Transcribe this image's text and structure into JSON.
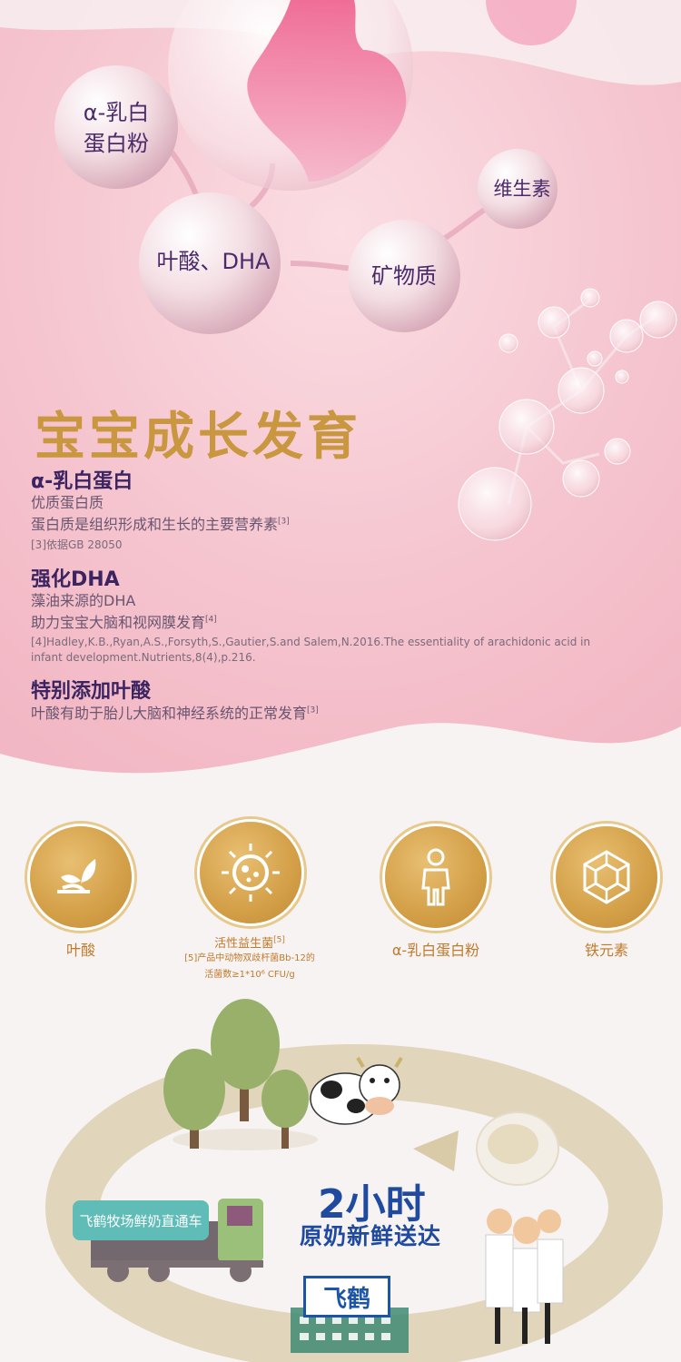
{
  "bubbles": {
    "alpha_protein": "α-乳白\n蛋白粉",
    "folic_dha": "叶酸、DHA",
    "minerals": "矿物质",
    "vitamins": "维生素"
  },
  "growth": {
    "title": "宝宝成长发育",
    "items": [
      {
        "heading": "α-乳白蛋白",
        "lines": [
          "优质蛋白质",
          "蛋白质是组织形成和生长的主要营养素"
        ],
        "line_sup": "[3]",
        "ref": "[3]依据GB 28050"
      },
      {
        "heading": "强化DHA",
        "lines": [
          "藻油来源的DHA",
          "助力宝宝大脑和视网膜发育"
        ],
        "line_sup": "[4]",
        "ref": "[4]Hadley,K.B.,Ryan,A.S.,Forsyth,S.,Gautier,S.and Salem,N.2016.The essentiality of arachidonic acid in infant development.Nutrients,8(4),p.216."
      },
      {
        "heading": "特别添加叶酸",
        "lines": [
          "叶酸有助于胎儿大脑和神经系统的正常发育"
        ],
        "line_sup": "[3]"
      }
    ]
  },
  "features": [
    {
      "icon": "leaf-sprout-icon",
      "label": "叶酸"
    },
    {
      "icon": "bacteria-icon",
      "label": "活性益生菌",
      "label_sup": "[5]",
      "sub1": "[5]产品中动物双歧杆菌Bb-12的",
      "sub2": "活菌数≥1*10⁶ CFU/g"
    },
    {
      "icon": "person-icon",
      "label": "α-乳白蛋白粉"
    },
    {
      "icon": "iron-crystal-icon",
      "label": "铁元素"
    }
  ],
  "farm": {
    "truck_label": "飞鹤牧场鲜奶直通车",
    "time": "2小时",
    "slogan": "原奶新鲜送达",
    "brand": "飞鹤"
  },
  "colors": {
    "pink_bg": "#f6c9d2",
    "gold_title": "#c8973f",
    "purple_text": "#3b2461",
    "gold_icon": "#d39f47",
    "teal_label": "#5fbcb7",
    "blue_brand": "#1f4aa0"
  }
}
